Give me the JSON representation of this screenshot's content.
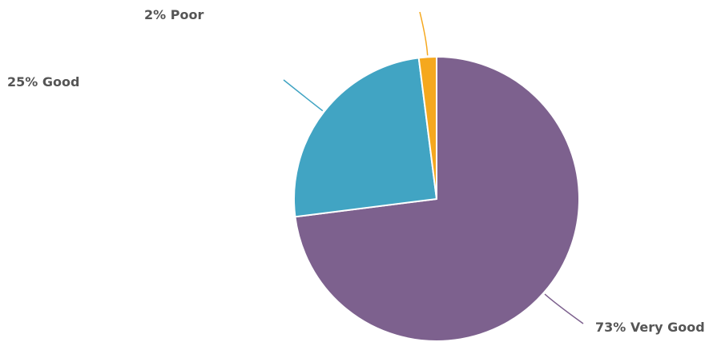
{
  "chart_data": {
    "type": "pie",
    "title": "",
    "start_angle_deg": 0,
    "direction": "clockwise",
    "slices": [
      {
        "label": "73% Very Good",
        "name": "Very Good",
        "percent": 73,
        "color": "#7d618e",
        "label_side": "right"
      },
      {
        "label": "25% Good",
        "name": "Good",
        "percent": 25,
        "color": "#41a4c3",
        "label_side": "left"
      },
      {
        "label": "2% Poor",
        "name": "Poor",
        "percent": 2,
        "color": "#f5a81e",
        "label_side": "left"
      }
    ]
  }
}
